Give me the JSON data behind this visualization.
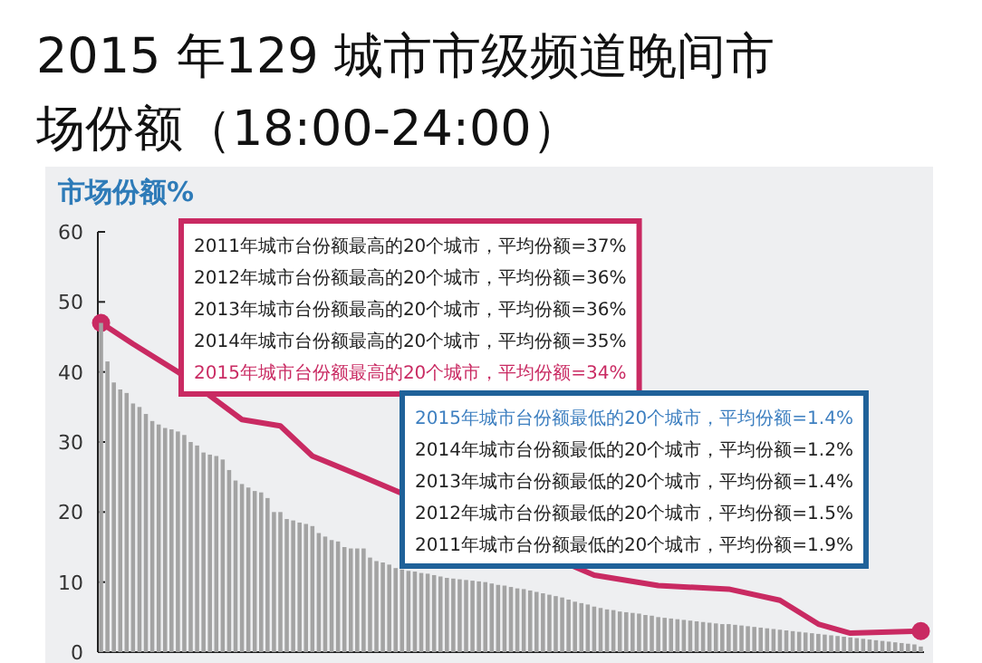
{
  "chart_data": {
    "type": "bar",
    "title": "2015 年129 城市市级频道晚间市场份额（18:00-24:00）",
    "ylabel": "市场份额%",
    "categories": [
      null,
      null,
      null,
      null,
      null,
      null,
      null,
      null,
      null,
      null,
      null,
      null,
      null,
      null,
      null,
      null,
      null,
      null,
      null,
      null,
      null,
      null,
      null,
      null,
      null,
      null,
      null,
      null,
      null,
      null,
      null,
      null,
      null,
      null,
      null,
      null,
      null,
      null,
      null,
      null,
      null,
      null,
      null,
      null,
      null,
      null,
      null,
      null,
      null,
      null,
      null,
      null,
      null,
      null,
      null,
      null,
      null,
      null,
      null,
      null,
      null,
      null,
      null,
      null,
      null,
      null,
      null,
      null,
      null,
      null,
      null,
      null,
      null,
      null,
      null,
      null,
      null,
      null,
      null,
      null,
      null,
      null,
      null,
      null,
      null,
      null,
      null,
      null,
      null,
      null,
      null,
      null,
      null,
      null,
      null,
      null,
      null,
      null,
      null,
      null,
      null,
      null,
      null,
      null,
      null,
      null,
      null,
      null,
      null,
      null,
      null,
      null,
      null,
      null,
      null,
      null,
      null,
      null,
      null,
      null,
      null,
      null,
      null,
      null,
      null,
      null,
      null,
      null,
      null
    ],
    "series": [
      {
        "color": "#a3a3a3",
        "values": [
          47,
          41.5,
          38.5,
          37.5,
          37,
          35.5,
          35,
          34,
          33,
          32.5,
          32,
          31.8,
          31.5,
          31,
          30,
          29.5,
          28.5,
          28.2,
          28,
          27.5,
          26,
          24.5,
          24,
          23.5,
          23,
          22.8,
          22,
          20,
          20,
          19,
          18.8,
          18.5,
          18.3,
          18,
          17,
          16.5,
          16,
          15.8,
          15,
          14.8,
          14.8,
          14.8,
          13.5,
          13,
          12.8,
          12.5,
          12,
          11.8,
          11.6,
          11.5,
          11.3,
          11.2,
          11,
          10.8,
          10.6,
          10.5,
          10.4,
          10.3,
          10.2,
          10.1,
          10,
          9.8,
          9.6,
          9.5,
          9.3,
          9.1,
          9,
          8.8,
          8.6,
          8.4,
          8.2,
          8,
          7.8,
          7.5,
          7.2,
          7,
          6.8,
          6.5,
          6.3,
          6.1,
          6,
          5.8,
          5.7,
          5.6,
          5.5,
          5.3,
          5.2,
          5,
          4.9,
          4.8,
          4.7,
          4.6,
          4.5,
          4.4,
          4.3,
          4.2,
          4.1,
          4,
          4,
          3.9,
          3.8,
          3.7,
          3.6,
          3.5,
          3.4,
          3.3,
          3.2,
          3.1,
          3,
          2.9,
          2.8,
          2.7,
          2.6,
          2.5,
          2.4,
          2.3,
          2.2,
          2.1,
          2,
          1.9,
          1.8,
          1.7,
          1.6,
          1.5,
          1.4,
          1.3,
          1.2,
          1.1,
          0.8
        ]
      },
      {
        "type": "line",
        "color": "#c92a62",
        "values": [
          47,
          null,
          null,
          null,
          null,
          44,
          null,
          null,
          null,
          null,
          null,
          null,
          40,
          null,
          null,
          null,
          null,
          null,
          null,
          null,
          null,
          null,
          33.2,
          null,
          null,
          null,
          null,
          null,
          32.3,
          null,
          null,
          null,
          null,
          28,
          null,
          null,
          null,
          null,
          null,
          null,
          null,
          25,
          null,
          null,
          null,
          null,
          null,
          null,
          null,
          null,
          null,
          null,
          null,
          null,
          null,
          null,
          null,
          null,
          null,
          null,
          null,
          null,
          null,
          null,
          null,
          null,
          null,
          null,
          null,
          null,
          null,
          null,
          null,
          null,
          null,
          null,
          null,
          11,
          null,
          null,
          null,
          null,
          null,
          null,
          null,
          null,
          null,
          9.5,
          null,
          null,
          null,
          null,
          null,
          null,
          null,
          null,
          null,
          null,
          9,
          null,
          null,
          null,
          null,
          null,
          null,
          null,
          7.4,
          null,
          null,
          null,
          null,
          null,
          4,
          null,
          null,
          null,
          null,
          2.7,
          null,
          null,
          null,
          null,
          null,
          null,
          null,
          null,
          null,
          null,
          3
        ]
      }
    ],
    "ylim": [
      0,
      60
    ],
    "yticks": [
      0,
      10,
      20,
      30,
      40,
      50,
      60
    ],
    "annotations": [
      "2011年城市台份额最高的20个城市，平均份额=37%",
      "2012年城市台份额最高的20个城市，平均份额=36%",
      "2013年城市台份额最高的20个城市，平均份额=36%",
      "2014年城市台份额最高的20个城市，平均份额=35%",
      "2015年城市台份额最高的20个城市，平均份额=34%",
      "2015年城市台份额最低的20个城市，平均份额=1.4%",
      "2014年城市台份额最低的20个城市，平均份额=1.2%",
      "2013年城市台份额最低的20个城市，平均份额=1.4%",
      "2012年城市台份额最低的20个城市，平均份额=1.5%",
      "2011年城市台份额最低的20个城市，平均份额=1.9%"
    ]
  }
}
